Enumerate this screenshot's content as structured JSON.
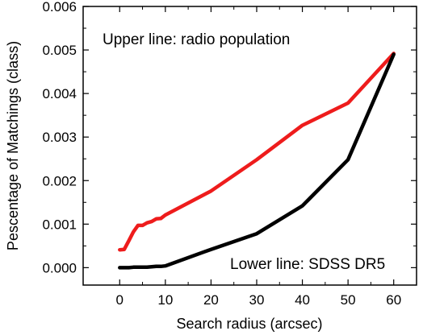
{
  "chart_data": {
    "type": "line",
    "title": "",
    "xlabel": "Search radius (arcsec)",
    "ylabel": "Pescentage of Matchings (class)",
    "xlim": [
      -8,
      65
    ],
    "ylim": [
      -0.0004,
      0.006
    ],
    "xticks": [
      0,
      10,
      20,
      30,
      40,
      50,
      60
    ],
    "yticks": [
      0.0,
      0.001,
      0.002,
      0.003,
      0.004,
      0.005,
      0.006
    ],
    "ytick_labels": [
      "0.000",
      "0.001",
      "0.002",
      "0.003",
      "0.004",
      "0.005",
      "0.006"
    ],
    "grid": false,
    "series": [
      {
        "color": "#ee1c1c",
        "x": [
          0,
          1,
          2,
          3,
          4,
          5,
          6,
          7,
          8,
          9,
          10,
          20,
          30,
          40,
          50,
          60
        ],
        "y": [
          0.00041,
          0.00042,
          0.00062,
          0.00082,
          0.00097,
          0.00097,
          0.00103,
          0.00106,
          0.00112,
          0.00113,
          0.00121,
          0.00176,
          0.00248,
          0.00327,
          0.00378,
          0.00492
        ]
      },
      {
        "color": "#000000",
        "x": [
          0,
          1,
          2,
          3,
          4,
          5,
          6,
          7,
          8,
          9,
          10,
          20,
          30,
          40,
          50,
          60
        ],
        "y": [
          0.0,
          0.0,
          0.0,
          1e-05,
          1e-05,
          1e-05,
          1e-05,
          2e-05,
          3e-05,
          3e-05,
          4e-05,
          0.00042,
          0.00078,
          0.00142,
          0.00248,
          0.0049
        ]
      }
    ],
    "annotations": [
      {
        "text": "Upper line: radio population",
        "position": "top-left"
      },
      {
        "text": "Lower line: SDSS DR5",
        "position": "bottom-right"
      }
    ]
  }
}
